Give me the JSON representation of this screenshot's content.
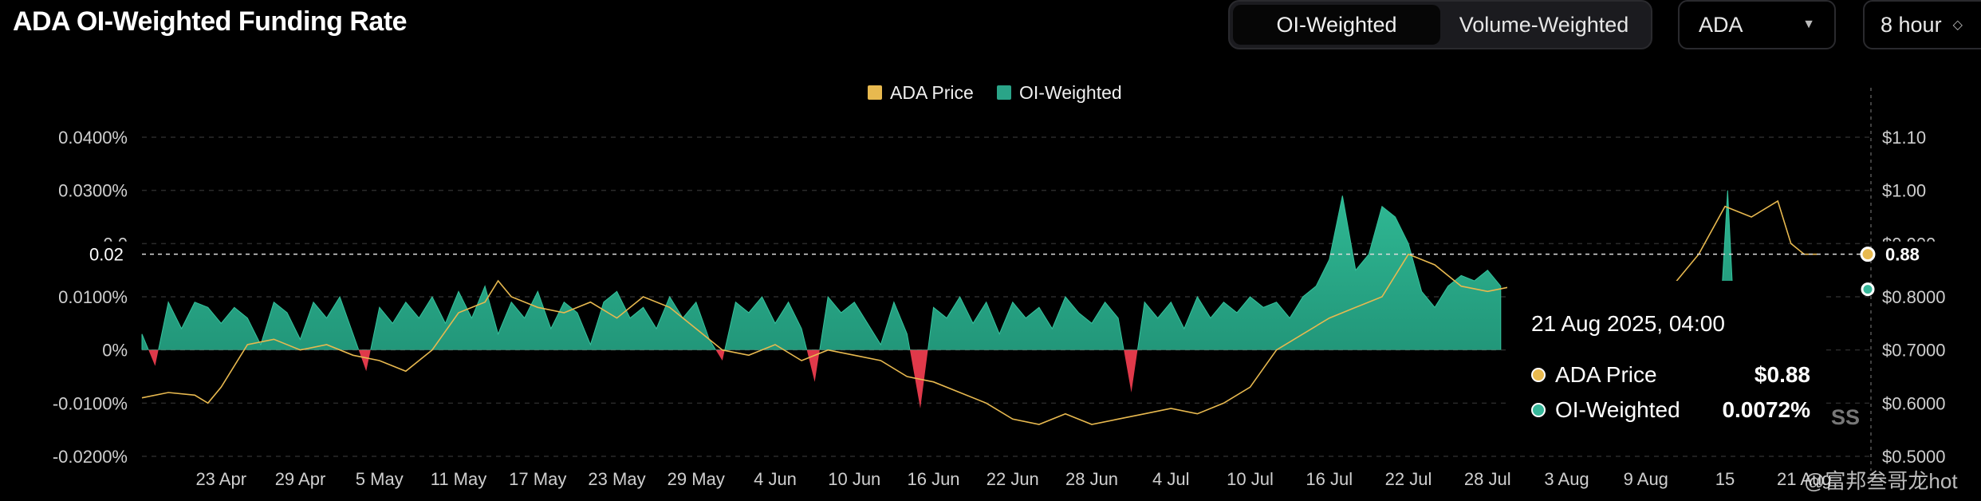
{
  "title": "ADA OI-Weighted Funding Rate",
  "toggle": {
    "options": [
      "OI-Weighted",
      "Volume-Weighted"
    ],
    "active": 0
  },
  "symbol_select": {
    "value": "ADA"
  },
  "interval_select": {
    "value": "8 hour"
  },
  "tooltip": {
    "title": "21 Aug 2025, 04:00",
    "rows": [
      {
        "label": "ADA Price",
        "value": "$0.88",
        "color": "#e8b94f"
      },
      {
        "label": "OI-Weighted",
        "value": "0.0072%",
        "color": "#37b79a"
      }
    ]
  },
  "crosshair_label_left": "0.02",
  "crosshair_label_right": "0.88",
  "watermark": "@富邦叁哥龙hot",
  "overlay_fragment": "SS",
  "chart_data": {
    "type": "area",
    "legend": [
      "ADA Price",
      "OI-Weighted"
    ],
    "legend_placement": "top-center",
    "colors": {
      "price": "#e8b94f",
      "positive": "#2aa488",
      "negative": "#e0394a"
    },
    "left_axis": {
      "ticks": [
        -0.02,
        -0.01,
        0,
        0.01,
        0.02,
        0.03,
        0.04
      ],
      "labels": [
        "-0.0200%",
        "-0.0100%",
        "0%",
        "0.0100%",
        "0.0",
        "0.0300%",
        "0.0400%"
      ],
      "range": [
        -0.02,
        0.04
      ]
    },
    "right_axis": {
      "ticks": [
        0.5,
        0.6,
        0.7,
        0.8,
        0.9,
        1.0,
        1.1
      ],
      "labels": [
        "$0.5000",
        "$0.6000",
        "$0.7000",
        "$0.8000",
        "$0.900",
        "$1.00",
        "$1.10"
      ],
      "range": [
        0.5,
        1.1
      ]
    },
    "x_labels": [
      "23 Apr",
      "29 Apr",
      "5 May",
      "11 May",
      "17 May",
      "23 May",
      "29 May",
      "4 Jun",
      "10 Jun",
      "16 Jun",
      "22 Jun",
      "28 Jun",
      "4 Jul",
      "10 Jul",
      "16 Jul",
      "22 Jul",
      "28 Jul",
      "3 Aug",
      "9 Aug",
      "15",
      "21 Aug"
    ],
    "x_label_days": [
      6,
      12,
      18,
      24,
      30,
      36,
      42,
      48,
      54,
      60,
      66,
      72,
      78,
      84,
      90,
      96,
      102,
      108,
      114,
      120,
      126
    ],
    "x_range_days": [
      0,
      131
    ],
    "funding_rate": [
      [
        0,
        0.003
      ],
      [
        1,
        -0.003
      ],
      [
        2,
        0.009
      ],
      [
        3,
        0.004
      ],
      [
        4,
        0.009
      ],
      [
        5,
        0.008
      ],
      [
        6,
        0.005
      ],
      [
        7,
        0.008
      ],
      [
        8,
        0.006
      ],
      [
        9,
        0.001
      ],
      [
        10,
        0.009
      ],
      [
        11,
        0.007
      ],
      [
        12,
        0.002
      ],
      [
        13,
        0.009
      ],
      [
        14,
        0.006
      ],
      [
        15,
        0.01
      ],
      [
        16,
        0.003
      ],
      [
        17,
        -0.004
      ],
      [
        18,
        0.008
      ],
      [
        19,
        0.005
      ],
      [
        20,
        0.009
      ],
      [
        21,
        0.006
      ],
      [
        22,
        0.01
      ],
      [
        23,
        0.005
      ],
      [
        24,
        0.011
      ],
      [
        25,
        0.006
      ],
      [
        26,
        0.012
      ],
      [
        27,
        0.003
      ],
      [
        28,
        0.009
      ],
      [
        29,
        0.006
      ],
      [
        30,
        0.011
      ],
      [
        31,
        0.004
      ],
      [
        32,
        0.009
      ],
      [
        33,
        0.007
      ],
      [
        34,
        0.001
      ],
      [
        35,
        0.009
      ],
      [
        36,
        0.011
      ],
      [
        37,
        0.006
      ],
      [
        38,
        0.008
      ],
      [
        39,
        0.004
      ],
      [
        40,
        0.01
      ],
      [
        41,
        0.006
      ],
      [
        42,
        0.009
      ],
      [
        43,
        0.002
      ],
      [
        44,
        -0.002
      ],
      [
        45,
        0.009
      ],
      [
        46,
        0.007
      ],
      [
        47,
        0.01
      ],
      [
        48,
        0.005
      ],
      [
        49,
        0.009
      ],
      [
        50,
        0.004
      ],
      [
        51,
        -0.006
      ],
      [
        52,
        0.01
      ],
      [
        53,
        0.007
      ],
      [
        54,
        0.009
      ],
      [
        55,
        0.005
      ],
      [
        56,
        0.001
      ],
      [
        57,
        0.009
      ],
      [
        58,
        0.003
      ],
      [
        59,
        -0.011
      ],
      [
        60,
        0.008
      ],
      [
        61,
        0.006
      ],
      [
        62,
        0.01
      ],
      [
        63,
        0.005
      ],
      [
        64,
        0.009
      ],
      [
        65,
        0.003
      ],
      [
        66,
        0.009
      ],
      [
        67,
        0.006
      ],
      [
        68,
        0.008
      ],
      [
        69,
        0.004
      ],
      [
        70,
        0.01
      ],
      [
        71,
        0.007
      ],
      [
        72,
        0.005
      ],
      [
        73,
        0.009
      ],
      [
        74,
        0.006
      ],
      [
        75,
        -0.008
      ],
      [
        76,
        0.009
      ],
      [
        77,
        0.006
      ],
      [
        78,
        0.009
      ],
      [
        79,
        0.004
      ],
      [
        80,
        0.01
      ],
      [
        81,
        0.006
      ],
      [
        82,
        0.009
      ],
      [
        83,
        0.007
      ],
      [
        84,
        0.01
      ],
      [
        85,
        0.008
      ],
      [
        86,
        0.009
      ],
      [
        87,
        0.006
      ],
      [
        88,
        0.01
      ],
      [
        89,
        0.012
      ],
      [
        90,
        0.017
      ],
      [
        91,
        0.029
      ],
      [
        92,
        0.015
      ],
      [
        93,
        0.018
      ],
      [
        94,
        0.027
      ],
      [
        95,
        0.025
      ],
      [
        96,
        0.02
      ],
      [
        97,
        0.011
      ],
      [
        98,
        0.008
      ],
      [
        99,
        0.012
      ],
      [
        100,
        0.014
      ],
      [
        101,
        0.013
      ],
      [
        102,
        0.015
      ],
      [
        103,
        0.012
      ],
      [
        123,
        0.0
      ],
      [
        124,
        0.004
      ],
      [
        125,
        0.01
      ],
      [
        125.5,
        0.004
      ],
      [
        126,
        -0.004
      ],
      [
        127,
        0.0072
      ]
    ],
    "funding_rate_spike": [
      [
        119.5,
        0.0
      ],
      [
        120.2,
        0.03
      ],
      [
        120.8,
        0.0
      ]
    ],
    "price": [
      [
        0,
        0.61
      ],
      [
        2,
        0.62
      ],
      [
        4,
        0.615
      ],
      [
        5,
        0.6
      ],
      [
        6,
        0.63
      ],
      [
        8,
        0.71
      ],
      [
        10,
        0.72
      ],
      [
        12,
        0.7
      ],
      [
        14,
        0.71
      ],
      [
        16,
        0.69
      ],
      [
        18,
        0.68
      ],
      [
        20,
        0.66
      ],
      [
        22,
        0.7
      ],
      [
        24,
        0.77
      ],
      [
        26,
        0.79
      ],
      [
        27,
        0.83
      ],
      [
        28,
        0.8
      ],
      [
        30,
        0.78
      ],
      [
        32,
        0.77
      ],
      [
        34,
        0.79
      ],
      [
        36,
        0.76
      ],
      [
        38,
        0.8
      ],
      [
        40,
        0.78
      ],
      [
        42,
        0.74
      ],
      [
        44,
        0.7
      ],
      [
        46,
        0.69
      ],
      [
        48,
        0.71
      ],
      [
        50,
        0.68
      ],
      [
        52,
        0.7
      ],
      [
        54,
        0.69
      ],
      [
        56,
        0.68
      ],
      [
        58,
        0.65
      ],
      [
        60,
        0.64
      ],
      [
        62,
        0.62
      ],
      [
        64,
        0.6
      ],
      [
        66,
        0.57
      ],
      [
        68,
        0.56
      ],
      [
        70,
        0.58
      ],
      [
        72,
        0.56
      ],
      [
        74,
        0.57
      ],
      [
        76,
        0.58
      ],
      [
        78,
        0.59
      ],
      [
        80,
        0.58
      ],
      [
        82,
        0.6
      ],
      [
        84,
        0.63
      ],
      [
        86,
        0.7
      ],
      [
        88,
        0.73
      ],
      [
        90,
        0.76
      ],
      [
        92,
        0.78
      ],
      [
        94,
        0.8
      ],
      [
        96,
        0.88
      ],
      [
        98,
        0.86
      ],
      [
        100,
        0.82
      ],
      [
        102,
        0.81
      ],
      [
        104,
        0.82
      ],
      [
        116,
        0.82
      ],
      [
        118,
        0.88
      ],
      [
        120,
        0.97
      ],
      [
        122,
        0.95
      ],
      [
        124,
        0.98
      ],
      [
        125,
        0.9
      ],
      [
        126,
        0.88
      ],
      [
        127,
        0.88
      ]
    ],
    "hover": {
      "day": 127,
      "price": 0.88,
      "funding_rate": 0.0072
    }
  }
}
